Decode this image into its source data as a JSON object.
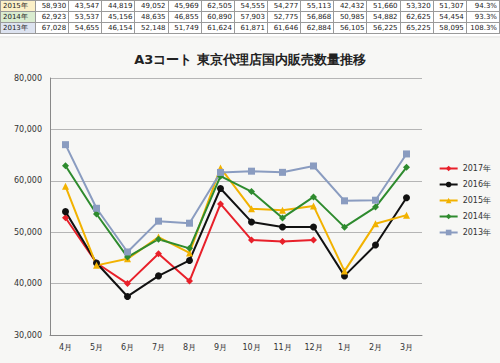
{
  "table": {
    "rows": [
      [
        "2015年",
        "58,930",
        "43,547",
        "44,819",
        "49,052",
        "45,969",
        "62,505",
        "54,555",
        "54,277",
        "55,113",
        "42,432",
        "51,660",
        "53,320",
        "51,307",
        "94.3%"
      ],
      [
        "2014年",
        "62,923",
        "53,537",
        "45,156",
        "48,635",
        "46,855",
        "60,890",
        "57,903",
        "52,775",
        "56,868",
        "50,985",
        "54,882",
        "62,625",
        "54,454",
        "93.3%"
      ],
      [
        "2013年",
        "67,028",
        "54,655",
        "46,154",
        "52,148",
        "51,749",
        "61,624",
        "61,871",
        "61,646",
        "62,884",
        "56,105",
        "56,225",
        "65,225",
        "58,095",
        "108.3%"
      ]
    ]
  },
  "chart_data": {
    "type": "line",
    "title": "A3コート 東京代理店国内販売数量推移",
    "categories": [
      "4月",
      "5月",
      "6月",
      "7月",
      "8月",
      "9月",
      "10月",
      "11月",
      "12月",
      "1月",
      "2月",
      "3月"
    ],
    "series": [
      {
        "name": "2017年",
        "color": "#e8202a",
        "marker": "diamond",
        "values": [
          52800,
          44000,
          40000,
          45800,
          40500,
          55500,
          48500,
          48200,
          48500,
          null,
          null,
          null
        ]
      },
      {
        "name": "2016年",
        "color": "#111111",
        "marker": "circle",
        "values": [
          54000,
          44000,
          37500,
          41500,
          44500,
          58500,
          52000,
          51000,
          51000,
          41500,
          47500,
          56700
        ]
      },
      {
        "name": "2015年",
        "color": "#f2b200",
        "marker": "triangle",
        "values": [
          58930,
          43547,
          44819,
          49052,
          45969,
          62505,
          54555,
          54277,
          55113,
          42432,
          51660,
          53320
        ]
      },
      {
        "name": "2014年",
        "color": "#2e8b2e",
        "marker": "diamond",
        "values": [
          62923,
          53537,
          45156,
          48635,
          46855,
          60890,
          57903,
          52775,
          56868,
          50985,
          54882,
          62625
        ]
      },
      {
        "name": "2013年",
        "color": "#8a9cc0",
        "marker": "square",
        "values": [
          67028,
          54655,
          46154,
          52148,
          51749,
          61624,
          61871,
          61646,
          62884,
          56105,
          56225,
          65225
        ]
      }
    ],
    "ylim": [
      30000,
      80000
    ],
    "yticks": [
      {
        "value": 30000,
        "label": "30,000"
      },
      {
        "value": 40000,
        "label": "40,000"
      },
      {
        "value": 50000,
        "label": "50,000"
      },
      {
        "value": 60000,
        "label": "60,000"
      },
      {
        "value": 70000,
        "label": "70,000"
      },
      {
        "value": 80000,
        "label": "80,000"
      }
    ],
    "grid": true,
    "legend": "right"
  }
}
